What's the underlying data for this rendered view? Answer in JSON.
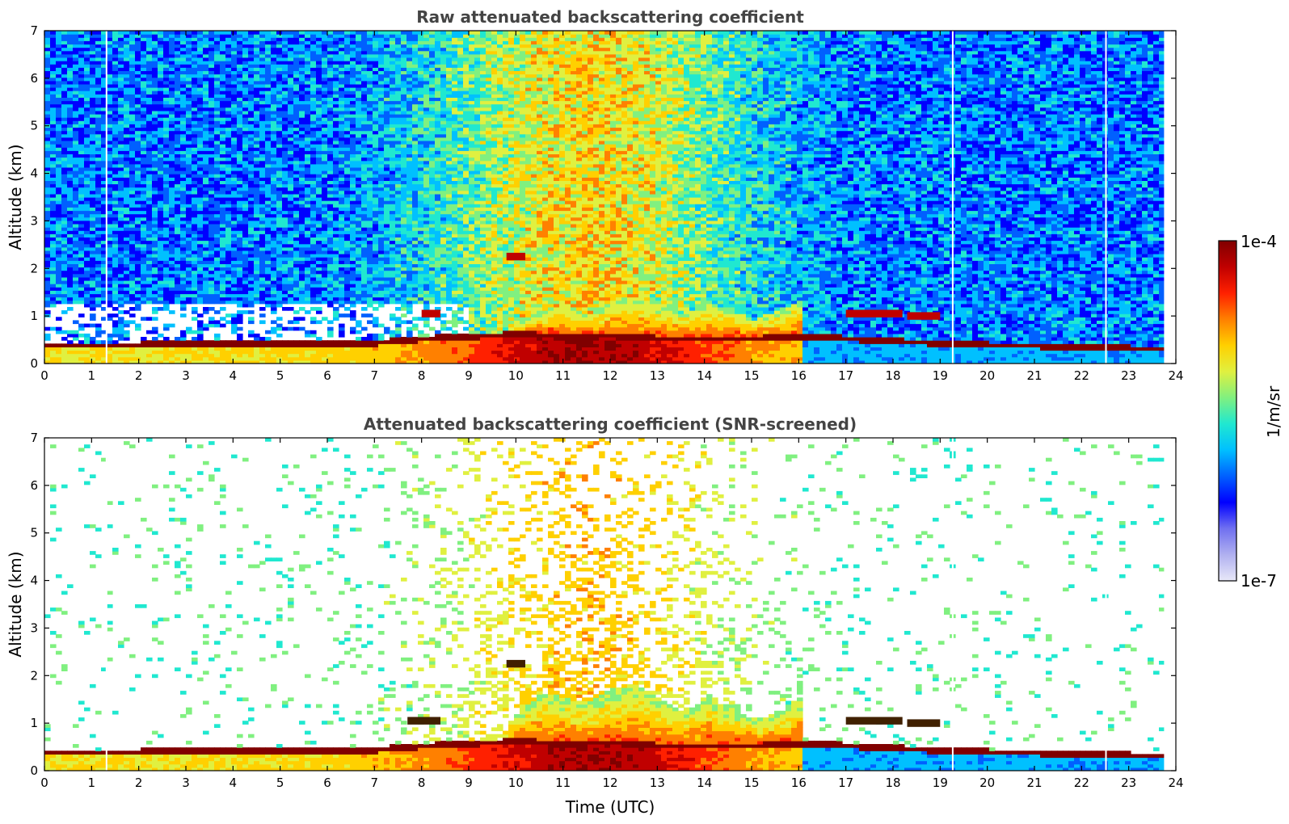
{
  "chart_data": [
    {
      "type": "heatmap",
      "title": "Raw attenuated backscattering coefficient",
      "xlabel": "",
      "ylabel": "Altitude (km)",
      "xlim": [
        0,
        24
      ],
      "ylim": [
        0,
        7
      ],
      "x_ticks": [
        0,
        1,
        2,
        3,
        4,
        5,
        6,
        7,
        8,
        9,
        10,
        11,
        12,
        13,
        14,
        15,
        16,
        17,
        18,
        19,
        20,
        21,
        22,
        23,
        24
      ],
      "y_ticks": [
        0,
        1,
        2,
        3,
        4,
        5,
        6,
        7
      ],
      "x_tick_labels": [
        "0",
        "1",
        "2",
        "3",
        "4",
        "5",
        "6",
        "7",
        "8",
        "9",
        "10",
        "11",
        "12",
        "13",
        "14",
        "15",
        "16",
        "17",
        "18",
        "19",
        "20",
        "21",
        "22",
        "23",
        "24"
      ],
      "y_tick_labels": [
        "0",
        "1",
        "2",
        "3",
        "4",
        "5",
        "6",
        "7"
      ],
      "data_end_hour": 23.75,
      "data_gaps_hours": [
        1.3,
        19.25,
        22.5
      ],
      "boundary_layer_top_km": [
        [
          0,
          0.4
        ],
        [
          2,
          0.42
        ],
        [
          4,
          0.45
        ],
        [
          6,
          0.45
        ],
        [
          7,
          0.47
        ],
        [
          8,
          0.55
        ],
        [
          9,
          0.6
        ],
        [
          10,
          0.65
        ],
        [
          11,
          0.6
        ],
        [
          12,
          0.62
        ],
        [
          13,
          0.55
        ],
        [
          14,
          0.55
        ],
        [
          15,
          0.55
        ],
        [
          16,
          0.6
        ],
        [
          17,
          0.55
        ],
        [
          18,
          0.5
        ],
        [
          19,
          0.45
        ],
        [
          20,
          0.42
        ],
        [
          21,
          0.4
        ],
        [
          22,
          0.37
        ],
        [
          23,
          0.35
        ],
        [
          23.75,
          0.35
        ]
      ],
      "convective_layer_top_km": [
        [
          10,
          0.8
        ],
        [
          10.5,
          1.1
        ],
        [
          11,
          1.2
        ],
        [
          11.5,
          1.0
        ],
        [
          12,
          1.3
        ],
        [
          12.5,
          1.4
        ],
        [
          13,
          1.2
        ],
        [
          13.5,
          1.0
        ],
        [
          14,
          1.3
        ],
        [
          14.5,
          1.1
        ],
        [
          15,
          0.9
        ],
        [
          15.5,
          1.1
        ],
        [
          16,
          1.3
        ]
      ],
      "cloud_layers": [
        {
          "x_start": 9.8,
          "x_end": 10.2,
          "altitude_km": 2.25
        },
        {
          "x_start": 8.0,
          "x_end": 8.4,
          "altitude_km": 1.05
        },
        {
          "x_start": 17.0,
          "x_end": 18.2,
          "altitude_km": 1.05
        },
        {
          "x_start": 18.3,
          "x_end": 19.0,
          "altitude_km": 1.0
        }
      ],
      "screened": false
    },
    {
      "type": "heatmap",
      "title": "Attenuated backscattering coefficient (SNR-screened)",
      "xlabel": "Time (UTC)",
      "ylabel": "Altitude (km)",
      "xlim": [
        0,
        24
      ],
      "ylim": [
        0,
        7
      ],
      "x_ticks": [
        0,
        1,
        2,
        3,
        4,
        5,
        6,
        7,
        8,
        9,
        10,
        11,
        12,
        13,
        14,
        15,
        16,
        17,
        18,
        19,
        20,
        21,
        22,
        23,
        24
      ],
      "y_ticks": [
        0,
        1,
        2,
        3,
        4,
        5,
        6,
        7
      ],
      "x_tick_labels": [
        "0",
        "1",
        "2",
        "3",
        "4",
        "5",
        "6",
        "7",
        "8",
        "9",
        "10",
        "11",
        "12",
        "13",
        "14",
        "15",
        "16",
        "17",
        "18",
        "19",
        "20",
        "21",
        "22",
        "23",
        "24"
      ],
      "y_tick_labels": [
        "0",
        "1",
        "2",
        "3",
        "4",
        "5",
        "6",
        "7"
      ],
      "data_end_hour": 23.75,
      "data_gaps_hours": [
        1.3,
        19.25,
        22.5
      ],
      "boundary_layer_top_km": [
        [
          0,
          0.4
        ],
        [
          2,
          0.42
        ],
        [
          4,
          0.45
        ],
        [
          6,
          0.45
        ],
        [
          7,
          0.47
        ],
        [
          8,
          0.55
        ],
        [
          9,
          0.6
        ],
        [
          10,
          0.65
        ],
        [
          11,
          0.6
        ],
        [
          12,
          0.62
        ],
        [
          13,
          0.55
        ],
        [
          14,
          0.55
        ],
        [
          15,
          0.55
        ],
        [
          16,
          0.6
        ],
        [
          17,
          0.55
        ],
        [
          18,
          0.5
        ],
        [
          19,
          0.45
        ],
        [
          20,
          0.42
        ],
        [
          21,
          0.4
        ],
        [
          22,
          0.37
        ],
        [
          23,
          0.35
        ],
        [
          23.75,
          0.35
        ]
      ],
      "convective_layer_top_km": [
        [
          9.8,
          1.0
        ],
        [
          10.5,
          1.6
        ],
        [
          11,
          1.5
        ],
        [
          11.5,
          1.4
        ],
        [
          12,
          1.7
        ],
        [
          12.5,
          1.8
        ],
        [
          13,
          1.5
        ],
        [
          13.5,
          1.2
        ],
        [
          14,
          1.5
        ],
        [
          14.5,
          1.3
        ],
        [
          15,
          1.0
        ],
        [
          15.5,
          1.2
        ],
        [
          16,
          1.5
        ]
      ],
      "cloud_layers": [
        {
          "x_start": 9.8,
          "x_end": 10.2,
          "altitude_km": 2.25
        },
        {
          "x_start": 7.7,
          "x_end": 8.4,
          "altitude_km": 1.05
        },
        {
          "x_start": 17.0,
          "x_end": 18.2,
          "altitude_km": 1.05
        },
        {
          "x_start": 18.3,
          "x_end": 19.0,
          "altitude_km": 1.0
        }
      ],
      "screened": true
    }
  ],
  "colorbar": {
    "label": "1/m/sr",
    "max_label": "1e-4",
    "min_label": "1e-7",
    "scale": "log",
    "colormap": "jet",
    "colors": [
      "#e8e8f8",
      "#b0b0f0",
      "#7070f0",
      "#0000ff",
      "#0060ff",
      "#00c0ff",
      "#20e8d0",
      "#80f080",
      "#e0f040",
      "#ffd000",
      "#ff8000",
      "#ff2000",
      "#c00000",
      "#800000"
    ]
  }
}
